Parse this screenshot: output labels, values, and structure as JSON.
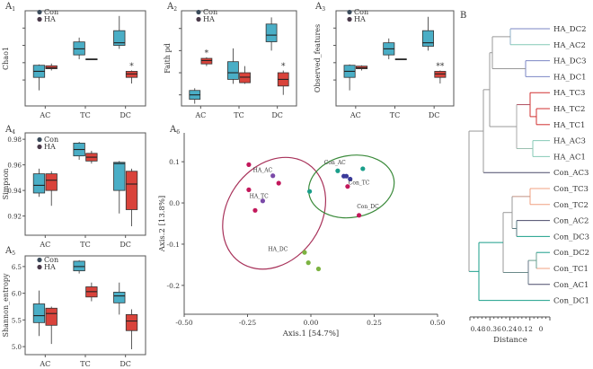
{
  "colors": {
    "con": "#4aaec6",
    "ha": "#d9433b",
    "axis": "#555555",
    "haDark": "#4a3a4a",
    "conDark": "#3a4a5a",
    "ellipseHA": "#a8325a",
    "ellipseCon": "#3a8a3a"
  },
  "chart_data": [
    {
      "id": "A1",
      "type": "box",
      "panel_label": "A",
      "panel_sub": "1",
      "categories": [
        "AC",
        "TC",
        "DC"
      ],
      "ylabel": "Chao1",
      "legend": [
        "Con",
        "HA"
      ],
      "ylim": [
        150,
        700
      ],
      "boxes": [
        {
          "cat": "AC",
          "group": "Con",
          "min": 240,
          "q1": 315,
          "median": 350,
          "q3": 385,
          "max": 390
        },
        {
          "cat": "AC",
          "group": "HA",
          "min": 355,
          "q1": 365,
          "median": 370,
          "q3": 382,
          "max": 395
        },
        {
          "cat": "TC",
          "group": "Con",
          "min": 420,
          "q1": 445,
          "median": 480,
          "q3": 520,
          "max": 545
        },
        {
          "cat": "TC",
          "group": "HA",
          "min": 418,
          "q1": 418,
          "median": 420,
          "q3": 422,
          "max": 422
        },
        {
          "cat": "DC",
          "group": "Con",
          "min": 480,
          "q1": 500,
          "median": 515,
          "q3": 585,
          "max": 670
        },
        {
          "cat": "DC",
          "group": "HA",
          "min": 280,
          "q1": 315,
          "median": 335,
          "q3": 350,
          "max": 355
        }
      ],
      "annotations": [
        {
          "cat": "DC",
          "text": "*"
        }
      ]
    },
    {
      "id": "A2",
      "type": "box",
      "panel_label": "A",
      "panel_sub": "2",
      "categories": [
        "AC",
        "TC",
        "DC"
      ],
      "ylabel": "Faith pd",
      "legend": [
        "Con",
        "HA"
      ],
      "ylim": [
        15,
        58
      ],
      "boxes": [
        {
          "cat": "AC",
          "group": "Con",
          "min": 16,
          "q1": 18,
          "median": 20,
          "q3": 22,
          "max": 23
        },
        {
          "cat": "AC",
          "group": "HA",
          "min": 33,
          "q1": 34,
          "median": 35.5,
          "q3": 36.5,
          "max": 37
        },
        {
          "cat": "TC",
          "group": "Con",
          "min": 25,
          "q1": 27,
          "median": 30,
          "q3": 35,
          "max": 41
        },
        {
          "cat": "TC",
          "group": "HA",
          "min": 25,
          "q1": 25.5,
          "median": 28,
          "q3": 30,
          "max": 33
        },
        {
          "cat": "DC",
          "group": "Con",
          "min": 40,
          "q1": 44,
          "median": 47,
          "q3": 52,
          "max": 55
        },
        {
          "cat": "DC",
          "group": "HA",
          "min": 20,
          "q1": 24,
          "median": 27,
          "q3": 30,
          "max": 31
        }
      ],
      "annotations": [
        {
          "cat": "AC",
          "text": "*"
        },
        {
          "cat": "DC",
          "text": "*"
        }
      ]
    },
    {
      "id": "A3",
      "type": "box",
      "panel_label": "A",
      "panel_sub": "3",
      "categories": [
        "AC",
        "TC",
        "DC"
      ],
      "ylabel": "Observed_features",
      "legend": [
        "Con",
        "HA"
      ],
      "ylim": [
        150,
        700
      ],
      "boxes": [
        {
          "cat": "AC",
          "group": "Con",
          "min": 240,
          "q1": 315,
          "median": 350,
          "q3": 385,
          "max": 390
        },
        {
          "cat": "AC",
          "group": "HA",
          "min": 355,
          "q1": 365,
          "median": 370,
          "q3": 380,
          "max": 385
        },
        {
          "cat": "TC",
          "group": "Con",
          "min": 420,
          "q1": 445,
          "median": 480,
          "q3": 515,
          "max": 540
        },
        {
          "cat": "TC",
          "group": "HA",
          "min": 418,
          "q1": 418,
          "median": 420,
          "q3": 422,
          "max": 422
        },
        {
          "cat": "DC",
          "group": "Con",
          "min": 470,
          "q1": 495,
          "median": 515,
          "q3": 585,
          "max": 665
        },
        {
          "cat": "DC",
          "group": "HA",
          "min": 280,
          "q1": 315,
          "median": 335,
          "q3": 350,
          "max": 355
        }
      ],
      "annotations": [
        {
          "cat": "DC",
          "text": "**"
        }
      ]
    },
    {
      "id": "A4",
      "type": "box",
      "panel_label": "A",
      "panel_sub": "4",
      "categories": [
        "AC",
        "TC",
        "DC"
      ],
      "ylabel": "Simpson",
      "legend": [
        "Con",
        "HA"
      ],
      "ylim": [
        0.905,
        0.985
      ],
      "yticks": [
        "0.92",
        "0.94",
        "0.96",
        "0.98"
      ],
      "boxes": [
        {
          "cat": "AC",
          "group": "Con",
          "min": 0.935,
          "q1": 0.938,
          "median": 0.944,
          "q3": 0.953,
          "max": 0.957
        },
        {
          "cat": "AC",
          "group": "HA",
          "min": 0.928,
          "q1": 0.94,
          "median": 0.948,
          "q3": 0.953,
          "max": 0.955
        },
        {
          "cat": "TC",
          "group": "Con",
          "min": 0.964,
          "q1": 0.967,
          "median": 0.972,
          "q3": 0.977,
          "max": 0.978
        },
        {
          "cat": "TC",
          "group": "HA",
          "min": 0.961,
          "q1": 0.963,
          "median": 0.966,
          "q3": 0.969,
          "max": 0.971
        },
        {
          "cat": "DC",
          "group": "Con",
          "min": 0.922,
          "q1": 0.94,
          "median": 0.961,
          "q3": 0.962,
          "max": 0.963
        },
        {
          "cat": "DC",
          "group": "HA",
          "min": 0.912,
          "q1": 0.925,
          "median": 0.945,
          "q3": 0.955,
          "max": 0.957
        }
      ],
      "annotations": []
    },
    {
      "id": "A5",
      "type": "box",
      "panel_label": "A",
      "panel_sub": "5",
      "categories": [
        "AC",
        "TC",
        "DC"
      ],
      "ylabel": "Shannon_entropy",
      "legend": [
        "Con",
        "HA"
      ],
      "ylim": [
        4.85,
        6.7
      ],
      "yticks": [
        "5.0",
        "5.5",
        "6.0",
        "6.5"
      ],
      "boxes": [
        {
          "cat": "AC",
          "group": "Con",
          "min": 5.2,
          "q1": 5.45,
          "median": 5.58,
          "q3": 5.8,
          "max": 6.05
        },
        {
          "cat": "AC",
          "group": "HA",
          "min": 5.05,
          "q1": 5.4,
          "median": 5.62,
          "q3": 5.72,
          "max": 5.75
        },
        {
          "cat": "TC",
          "group": "Con",
          "min": 6.37,
          "q1": 6.42,
          "median": 6.5,
          "q3": 6.6,
          "max": 6.62
        },
        {
          "cat": "TC",
          "group": "HA",
          "min": 5.85,
          "q1": 5.93,
          "median": 6.03,
          "q3": 6.12,
          "max": 6.2
        },
        {
          "cat": "DC",
          "group": "Con",
          "min": 5.6,
          "q1": 5.82,
          "median": 5.95,
          "q3": 6.02,
          "max": 6.2
        },
        {
          "cat": "DC",
          "group": "HA",
          "min": 4.95,
          "q1": 5.3,
          "median": 5.48,
          "q3": 5.6,
          "max": 5.7
        }
      ],
      "annotations": []
    },
    {
      "id": "A6",
      "type": "scatter",
      "panel_label": "A",
      "panel_sub": "6",
      "xlabel": "Axis.1 [54.7%]",
      "ylabel": "Axis.2 [13.8%]",
      "xlim": [
        -0.5,
        0.5
      ],
      "ylim": [
        -0.27,
        0.17
      ],
      "xticks": [
        "-0.50",
        "-0.25",
        "0.00",
        "0.25",
        "0.50"
      ],
      "yticks": [
        "-0.2",
        "-0.1",
        "0.0",
        "0.1"
      ],
      "xtickvals": [
        -0.5,
        -0.25,
        0,
        0.25,
        0.5
      ],
      "ytickvals": [
        -0.2,
        -0.1,
        0.0,
        0.1
      ],
      "points": [
        {
          "group": "HA_AC",
          "color": "#7a4aa8",
          "x": -0.15,
          "y": 0.066
        },
        {
          "group": "HA_AC",
          "color": "#c2185b",
          "x": -0.245,
          "y": 0.093
        },
        {
          "group": "HA_AC",
          "color": "#c2185b",
          "x": -0.245,
          "y": 0.032
        },
        {
          "group": "HA_TC",
          "color": "#c2185b",
          "x": -0.127,
          "y": 0.048
        },
        {
          "group": "HA_TC",
          "color": "#7a4aa8",
          "x": -0.19,
          "y": 0.005
        },
        {
          "group": "HA_TC",
          "color": "#c2185b",
          "x": -0.22,
          "y": -0.018
        },
        {
          "group": "HA_DC",
          "color": "#7cb342",
          "x": -0.025,
          "y": -0.12
        },
        {
          "group": "HA_DC",
          "color": "#7cb342",
          "x": -0.01,
          "y": -0.145
        },
        {
          "group": "HA_DC",
          "color": "#7cb342",
          "x": 0.03,
          "y": -0.16
        },
        {
          "group": "Con_AC",
          "color": "#1a9e8a",
          "x": 0.106,
          "y": 0.078
        },
        {
          "group": "Con_AC",
          "color": "#1a9e8a",
          "x": 0.205,
          "y": 0.083
        },
        {
          "group": "Con_TC",
          "color": "#3a3a9a",
          "x": 0.13,
          "y": 0.065
        },
        {
          "group": "Con_TC",
          "color": "#3a3a9a",
          "x": 0.14,
          "y": 0.065
        },
        {
          "group": "Con_TC",
          "color": "#3a3a9a",
          "x": 0.155,
          "y": 0.058
        },
        {
          "group": "Con_DC",
          "color": "#c2185b",
          "x": 0.145,
          "y": 0.04
        },
        {
          "group": "Con_DC",
          "color": "#c2185b",
          "x": 0.19,
          "y": -0.03
        },
        {
          "group": "Con_DC",
          "color": "#1a9e8a",
          "x": -0.005,
          "y": 0.028
        }
      ],
      "labels": [
        {
          "text": "HA_AC",
          "color": "#c2185b",
          "x": -0.19,
          "y": 0.075
        },
        {
          "text": "HA_TC",
          "color": "#7a4aa8",
          "x": -0.205,
          "y": 0.012
        },
        {
          "text": "HA_DC",
          "color": "#7cb342",
          "x": -0.13,
          "y": -0.116
        },
        {
          "text": "Con_AC",
          "color": "#1a9e8a",
          "x": 0.095,
          "y": 0.094
        },
        {
          "text": "Con_TC",
          "color": "#3a3a9a",
          "x": 0.19,
          "y": 0.045
        },
        {
          "text": "Con_DC",
          "color": "#c2185b",
          "x": 0.225,
          "y": -0.013
        }
      ],
      "ellipses": [
        {
          "group": "HA",
          "cx": -0.145,
          "cy": -0.025,
          "rx": 0.185,
          "ry": 0.145,
          "angle": 35,
          "color": "#a8325a"
        },
        {
          "group": "Con",
          "cx": 0.16,
          "cy": 0.04,
          "rx": 0.17,
          "ry": 0.075,
          "angle": -10,
          "color": "#3a8a3a"
        }
      ]
    },
    {
      "id": "B",
      "type": "dendrogram",
      "panel_label": "B",
      "xlabel": "Distance",
      "xticks": [
        "0.48",
        "0.36",
        "0.24",
        "0.12",
        "0"
      ],
      "leaves": [
        {
          "name": "HA_DC2",
          "color": "#7b86c4"
        },
        {
          "name": "HA_AC2",
          "color": "#84c9b6"
        },
        {
          "name": "HA_DC3",
          "color": "#7b86c4"
        },
        {
          "name": "HA_DC1",
          "color": "#7b86c4"
        },
        {
          "name": "HA_TC3",
          "color": "#d03030"
        },
        {
          "name": "HA_TC2",
          "color": "#d03030"
        },
        {
          "name": "HA_TC1",
          "color": "#d03030"
        },
        {
          "name": "HA_AC3",
          "color": "#84c9b6"
        },
        {
          "name": "HA_AC1",
          "color": "#84c9b6"
        },
        {
          "name": "Con_AC3",
          "color": "#4a4a6a"
        },
        {
          "name": "Con_TC3",
          "color": "#f0a080"
        },
        {
          "name": "Con_TC2",
          "color": "#f0a080"
        },
        {
          "name": "Con_AC2",
          "color": "#4a4a6a"
        },
        {
          "name": "Con_DC3",
          "color": "#1a9e8a"
        },
        {
          "name": "Con_DC2",
          "color": "#1a9e8a"
        },
        {
          "name": "Con_TC1",
          "color": "#f0a080"
        },
        {
          "name": "Con_AC1",
          "color": "#4a4a6a"
        },
        {
          "name": "Con_DC1",
          "color": "#1a9e8a"
        }
      ]
    }
  ]
}
